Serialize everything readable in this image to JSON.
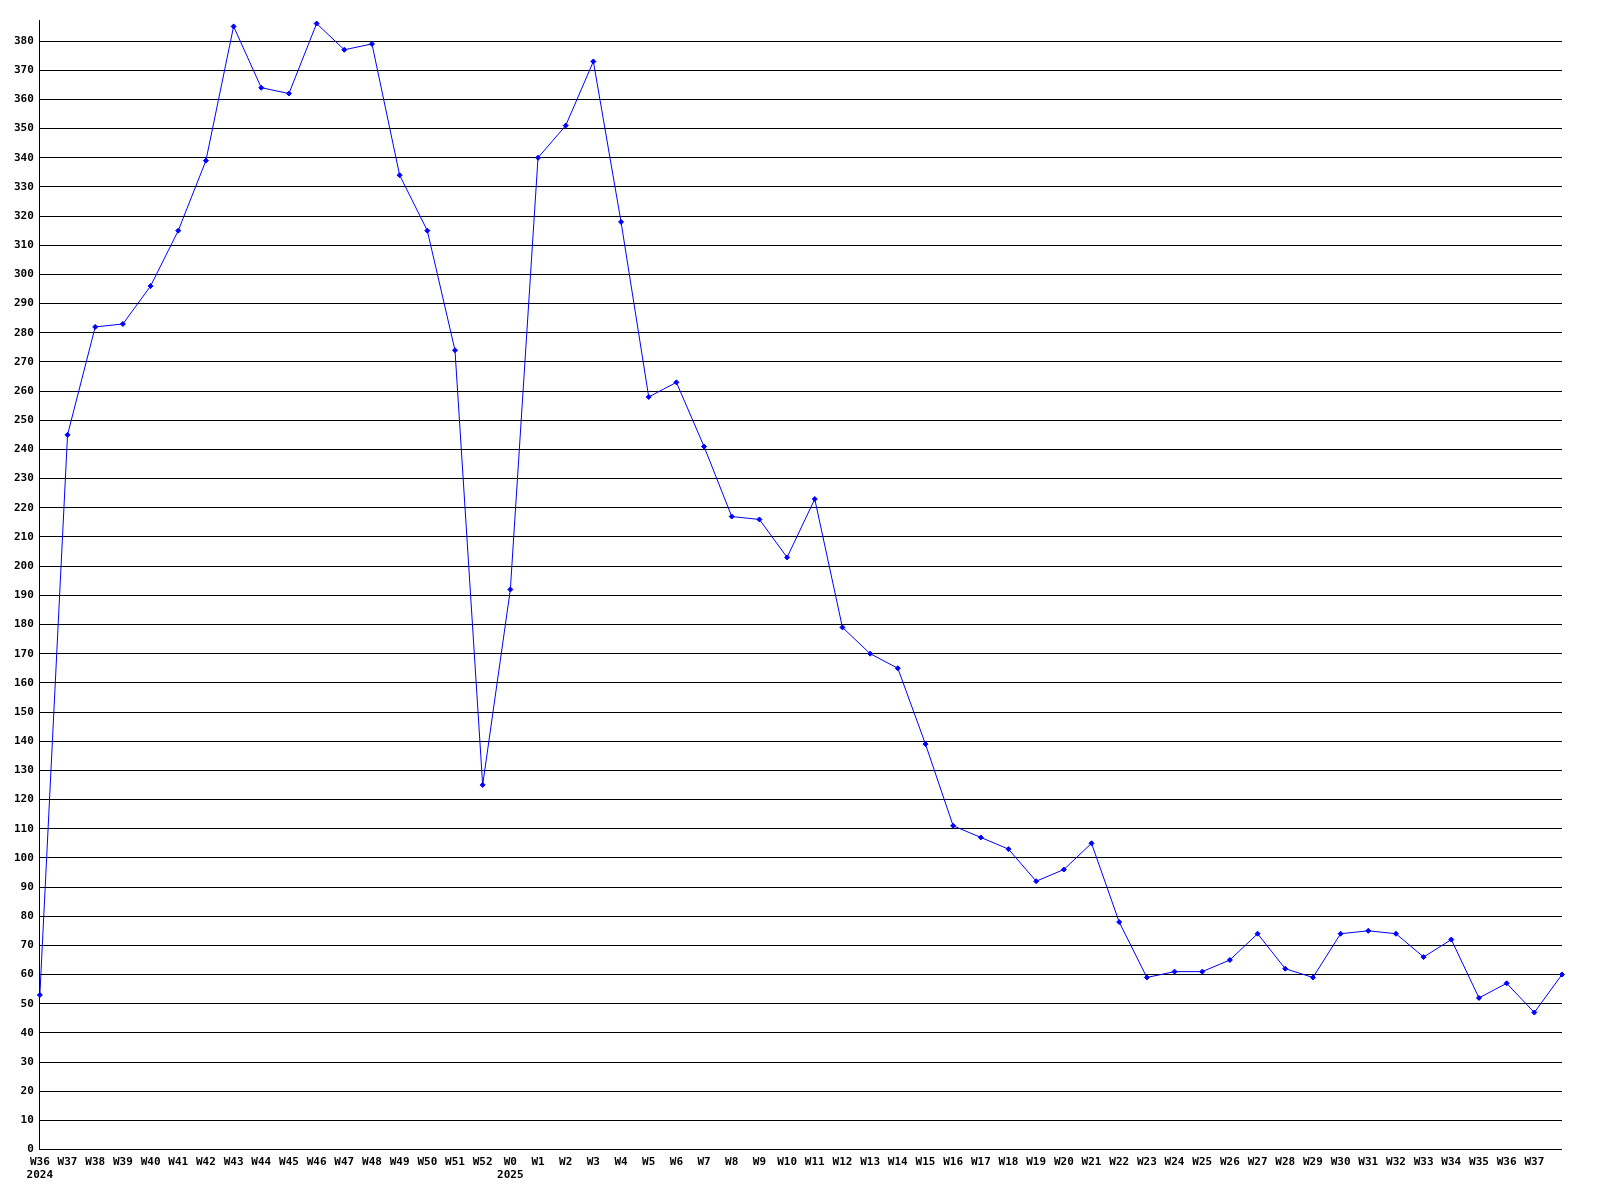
{
  "chart_data": {
    "type": "line",
    "categories": [
      "W36\n2024",
      "W37",
      "W38",
      "W39",
      "W40",
      "W41",
      "W42",
      "W43",
      "W44",
      "W45",
      "W46",
      "W47",
      "W48",
      "W49",
      "W50",
      "W51",
      "W52",
      "W0\n2025",
      "W1",
      "W2",
      "W3",
      "W4",
      "W5",
      "W6",
      "W7",
      "W8",
      "W9",
      "W10",
      "W11",
      "W12",
      "W13",
      "W14",
      "W15",
      "W16",
      "W17",
      "W18",
      "W19",
      "W20",
      "W21",
      "W22",
      "W23",
      "W24",
      "W25",
      "W26",
      "W27",
      "W28",
      "W29",
      "W30",
      "W31",
      "W32",
      "W33",
      "W34",
      "W35",
      "W36",
      "W37",
      null
    ],
    "series": [
      {
        "color": "#0000ff",
        "values": [
          53,
          245,
          282,
          283,
          296,
          315,
          339,
          385,
          364,
          362,
          386,
          377,
          379,
          334,
          315,
          274,
          125,
          192,
          340,
          351,
          373,
          318,
          258,
          263,
          241,
          217,
          216,
          203,
          223,
          179,
          170,
          165,
          139,
          111,
          107,
          103,
          92,
          96,
          105,
          78,
          59,
          61,
          61,
          65,
          74,
          62,
          59,
          74,
          75,
          74,
          66,
          72,
          52,
          57,
          47,
          60
        ]
      }
    ],
    "ylim": [
      0,
      387
    ],
    "yticks": [
      0,
      10,
      20,
      30,
      40,
      50,
      60,
      70,
      80,
      90,
      100,
      110,
      120,
      130,
      140,
      150,
      160,
      170,
      180,
      190,
      200,
      210,
      220,
      230,
      240,
      250,
      260,
      270,
      280,
      290,
      300,
      310,
      320,
      330,
      340,
      350,
      360,
      370,
      380
    ],
    "grid": "y",
    "legend": false,
    "marker": "diamond",
    "line_style": "solid"
  }
}
